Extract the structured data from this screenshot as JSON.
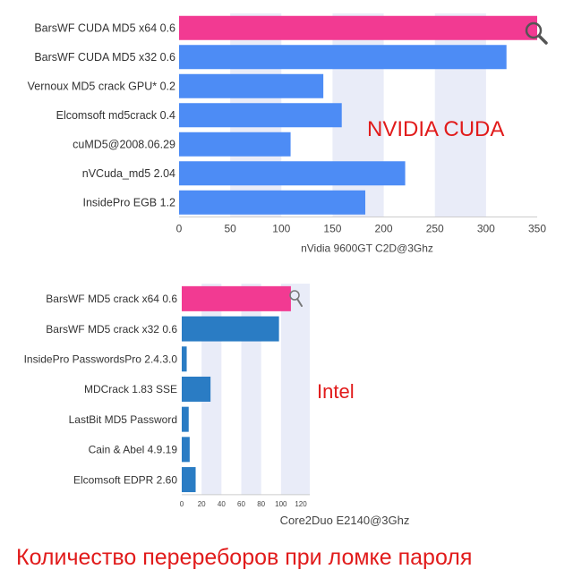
{
  "colors": {
    "highlight": "#f23a92",
    "bar_cuda": "#4d8cf5",
    "bar_intel": "#2a7cc4",
    "stripe": "#e9ecf8",
    "annotation": "#e11b1b"
  },
  "annotations": {
    "cuda": "NVIDIA CUDA",
    "intel": "Intel",
    "caption": "Количество перереборов при ломке пароля"
  },
  "icons": [
    "magnifier-icon"
  ],
  "chart_data": [
    {
      "type": "bar",
      "orientation": "horizontal",
      "categories": [
        "BarsWF CUDA MD5 x64 0.6",
        "BarsWF CUDA MD5 x32 0.6",
        "Vernoux MD5 crack GPU* 0.2",
        "Elcomsoft md5crack 0.4",
        "cuMD5@2008.06.29",
        "nVCuda_md5 2.04",
        "InsidePro EGB 1.2"
      ],
      "values": [
        350,
        320,
        141,
        159,
        109,
        221,
        182
      ],
      "highlight_index": 0,
      "xlabel": "nVidia 9600GT C2D@3Ghz",
      "xlim": [
        0,
        350
      ],
      "xticks": [
        0,
        50,
        100,
        150,
        200,
        250,
        300,
        350
      ],
      "grid": "alternating vertical bands"
    },
    {
      "type": "bar",
      "orientation": "horizontal",
      "categories": [
        "BarsWF MD5 crack x64 0.6",
        "BarsWF MD5 crack x32 0.6",
        "InsidePro PasswordsPro 2.4.3.0",
        "MDCrack 1.83 SSE",
        "LastBit MD5 Password",
        "Cain & Abel 4.9.19",
        "Elcomsoft EDPR 2.60"
      ],
      "values": [
        110,
        98,
        5,
        29,
        7,
        8,
        14
      ],
      "highlight_index": 0,
      "xlabel": "Core2Duo E2140@3Ghz",
      "xlim": [
        0,
        120
      ],
      "xticks": [
        0,
        20,
        40,
        60,
        80,
        100,
        120
      ],
      "grid": "alternating vertical bands"
    }
  ]
}
